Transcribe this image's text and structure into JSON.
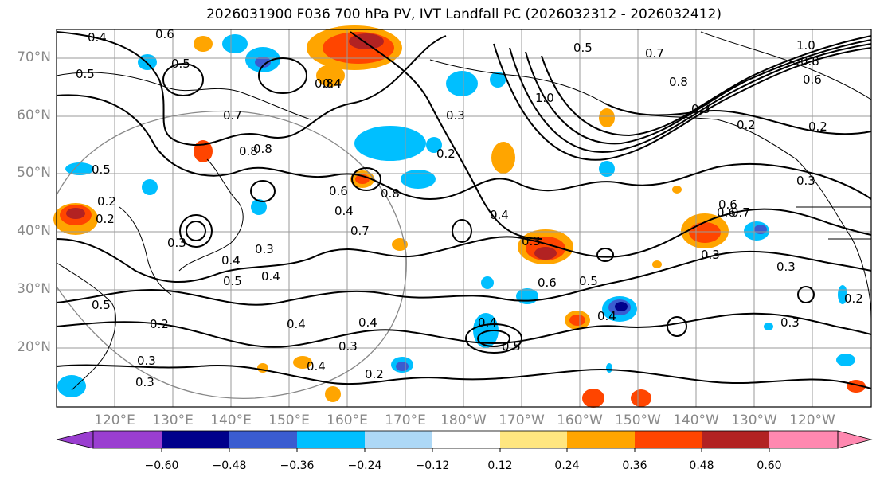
{
  "title": "2026031900 F036 700 hPa PV, IVT Landfall PC (2026032312 - 2026032412)",
  "lat_labels": [
    "70°N",
    "60°N",
    "50°N",
    "40°N",
    "30°N",
    "20°N"
  ],
  "lon_labels": [
    "120°E",
    "130°E",
    "140°E",
    "150°E",
    "160°E",
    "170°E",
    "180°W",
    "170°W",
    "160°W",
    "150°W",
    "140°W",
    "130°W",
    "120°W"
  ],
  "colorbar": {
    "ticks": [
      "−0.60",
      "−0.48",
      "−0.36",
      "−0.24",
      "−0.12",
      "0.12",
      "0.24",
      "0.36",
      "0.48",
      "0.60"
    ],
    "colors": [
      "#9a3ed0",
      "#00008b",
      "#3a5cd0",
      "#00bfff",
      "#add8f6",
      "#ffffff",
      "#ffe680",
      "#ffa500",
      "#ff4500",
      "#b22222",
      "#ff88b0"
    ]
  },
  "contour_labels": [
    "0.4",
    "0.6",
    "0.5",
    "0.5",
    "0.8",
    "0.7",
    "0.8",
    "0.5",
    "0.7",
    "1.0",
    "0.8",
    "0.3",
    "0.2",
    "0.2",
    "0.6",
    "0.8",
    "0.4",
    "0.3",
    "0.2",
    "0.6",
    "0.8",
    "0.2",
    "0.4",
    "0.3",
    "0.5",
    "0.4",
    "0.3",
    "0.5",
    "0.4",
    "0.7",
    "0.3",
    "0.6",
    "0.5",
    "0.4",
    "0.3",
    "0.6",
    "0.7",
    "0.3",
    "0.3",
    "0.2",
    "0.5",
    "0.2",
    "0.3",
    "0.4",
    "0.4",
    "0.3",
    "0.2",
    "0.4",
    "0.4",
    "0.3",
    "0.2",
    "0.3",
    "0.4",
    "0.5",
    "1.0",
    "0.8",
    "0.6"
  ]
}
